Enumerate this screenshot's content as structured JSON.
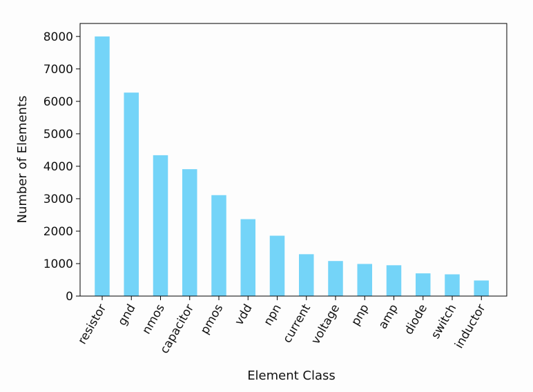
{
  "chart_data": {
    "type": "bar",
    "title": "",
    "xlabel": "Element Class",
    "ylabel": "Number of Elements",
    "categories": [
      "resistor",
      "gnd",
      "nmos",
      "capacitor",
      "pmos",
      "vdd",
      "npn",
      "current",
      "voltage",
      "pnp",
      "amp",
      "diode",
      "switch",
      "inductor"
    ],
    "values": [
      8000,
      6270,
      4340,
      3910,
      3110,
      2370,
      1860,
      1290,
      1080,
      990,
      950,
      700,
      670,
      480
    ],
    "ylim": [
      0,
      8400
    ],
    "yticks": [
      0,
      1000,
      2000,
      3000,
      4000,
      5000,
      6000,
      7000,
      8000
    ],
    "ytick_labels": [
      "0",
      "1000",
      "2000",
      "3000",
      "4000",
      "5000",
      "6000",
      "7000",
      "8000"
    ],
    "bar_color": "#74d4f8",
    "grid": false,
    "legend": "none"
  }
}
